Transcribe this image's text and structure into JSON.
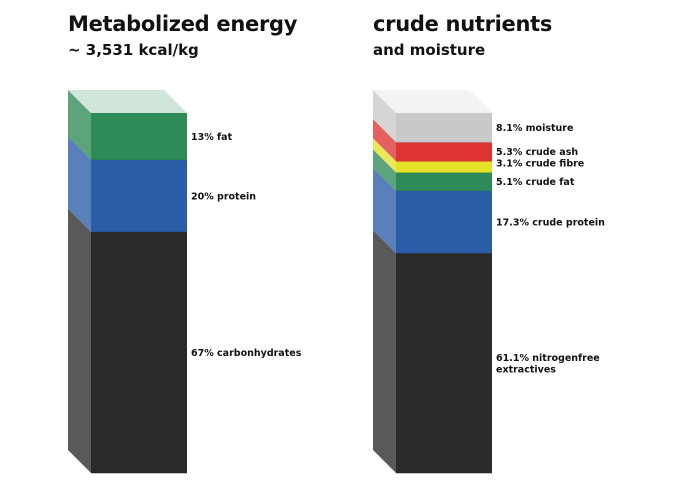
{
  "chart_data": [
    {
      "type": "stacked-bar",
      "title": "Metabolized energy",
      "subtitle": "~ 3,531 kcal/kg",
      "segments": [
        {
          "label": "67% carbonhydrates",
          "value": 67,
          "color": "#2a2a2a"
        },
        {
          "label": "20% protein",
          "value": 20,
          "color": "#2a5ca8"
        },
        {
          "label": "13% fat",
          "value": 13,
          "color": "#2e8b57"
        }
      ]
    },
    {
      "type": "stacked-bar",
      "title": "crude nutrients",
      "subtitle": "and moisture",
      "segments": [
        {
          "label": [
            "61.1% nitrogenfree",
            "extractives"
          ],
          "value": 61.1,
          "color": "#2a2a2a"
        },
        {
          "label": [
            "17.3% crude protein"
          ],
          "value": 17.3,
          "color": "#2a5ca8"
        },
        {
          "label": [
            "5.1% crude fat"
          ],
          "value": 5.1,
          "color": "#2e8b57"
        },
        {
          "label": [
            "3.1% crude fibre"
          ],
          "value": 3.1,
          "color": "#e3e12a"
        },
        {
          "label": [
            "5.3% crude ash"
          ],
          "value": 5.3,
          "color": "#dd3333"
        },
        {
          "label": [
            "8.1% moisture"
          ],
          "value": 8.1,
          "color": "#c9c9c9"
        }
      ]
    }
  ]
}
